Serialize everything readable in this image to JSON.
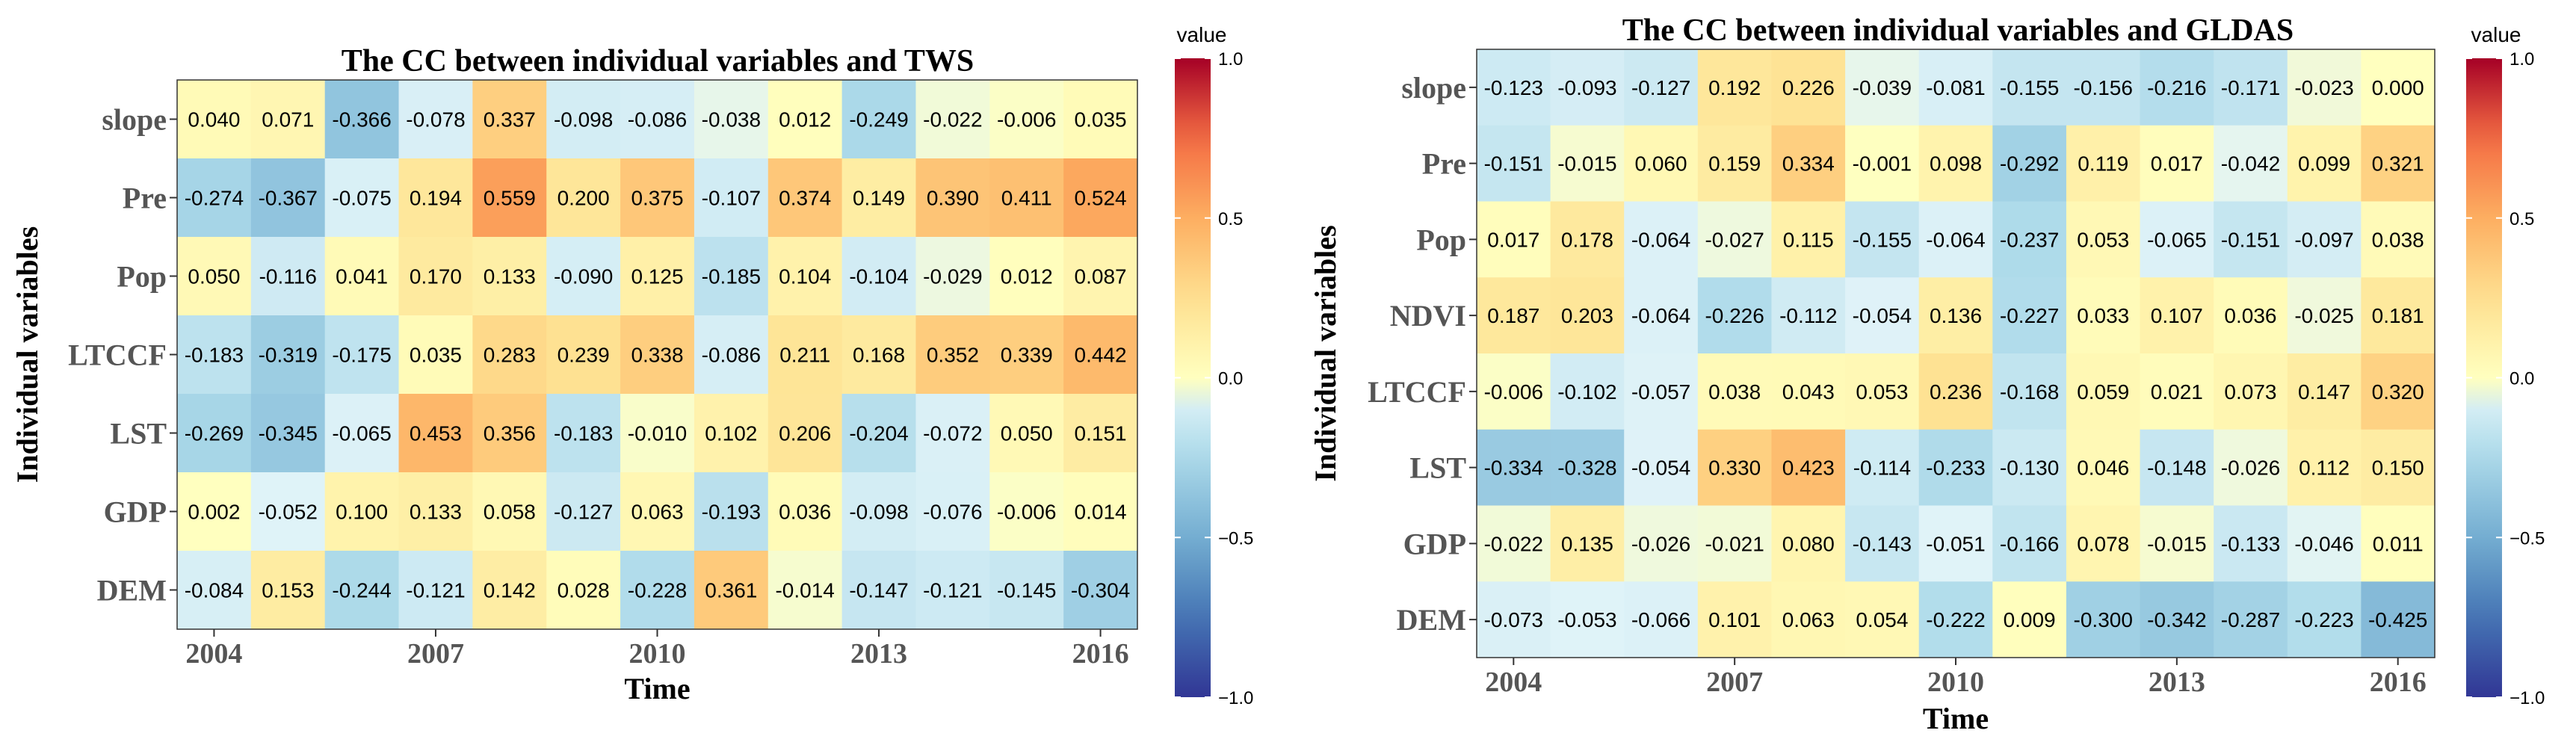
{
  "chart_data": [
    {
      "type": "heatmap",
      "title": "The CC between individual variables and TWS",
      "xlabel": "Time",
      "ylabel": "Individual variables",
      "x": [
        "2004",
        "2005",
        "2006",
        "2007",
        "2008",
        "2009",
        "2010",
        "2011",
        "2012",
        "2013",
        "2014",
        "2015",
        "2016"
      ],
      "x_tick_labels": [
        "2004",
        "2007",
        "2010",
        "2013",
        "2016"
      ],
      "rows": [
        "slope",
        "Pre",
        "Pop",
        "LTCCF",
        "LST",
        "GDP",
        "DEM"
      ],
      "values": [
        [
          0.04,
          0.071,
          -0.366,
          -0.078,
          0.337,
          -0.098,
          -0.086,
          -0.038,
          0.012,
          -0.249,
          -0.022,
          -0.006,
          0.035
        ],
        [
          -0.274,
          -0.367,
          -0.075,
          0.194,
          0.559,
          0.2,
          0.375,
          -0.107,
          0.374,
          0.149,
          0.39,
          0.411,
          0.524
        ],
        [
          0.05,
          -0.116,
          0.041,
          0.17,
          0.133,
          -0.09,
          0.125,
          -0.185,
          0.104,
          -0.104,
          -0.029,
          0.012,
          0.087
        ],
        [
          -0.183,
          -0.319,
          -0.175,
          0.035,
          0.283,
          0.239,
          0.338,
          -0.086,
          0.211,
          0.168,
          0.352,
          0.339,
          0.442
        ],
        [
          -0.269,
          -0.345,
          -0.065,
          0.453,
          0.356,
          -0.183,
          -0.01,
          0.102,
          0.206,
          -0.204,
          -0.072,
          0.05,
          0.151
        ],
        [
          0.002,
          -0.052,
          0.1,
          0.133,
          0.058,
          -0.127,
          0.063,
          -0.193,
          0.036,
          -0.098,
          -0.076,
          -0.006,
          0.014
        ],
        [
          -0.084,
          0.153,
          -0.244,
          -0.121,
          0.142,
          0.028,
          -0.228,
          0.361,
          -0.014,
          -0.147,
          -0.121,
          -0.145,
          -0.304
        ]
      ],
      "legend_title": "value",
      "legend_ticks": [
        "1.0",
        "0.5",
        "0.0",
        "−0.5",
        "−1.0"
      ],
      "scale_range": [
        -1,
        1
      ]
    },
    {
      "type": "heatmap",
      "title": "The CC between individual variables and GLDAS",
      "xlabel": "Time",
      "ylabel": "Individual variables",
      "x": [
        "2004",
        "2005",
        "2006",
        "2007",
        "2008",
        "2009",
        "2010",
        "2011",
        "2012",
        "2013",
        "2014",
        "2015",
        "2016"
      ],
      "x_tick_labels": [
        "2004",
        "2007",
        "2010",
        "2013",
        "2016"
      ],
      "rows": [
        "slope",
        "Pre",
        "Pop",
        "NDVI",
        "LTCCF",
        "LST",
        "GDP",
        "DEM"
      ],
      "values": [
        [
          -0.123,
          -0.093,
          -0.127,
          0.192,
          0.226,
          -0.039,
          -0.081,
          -0.155,
          -0.156,
          -0.216,
          -0.171,
          -0.023,
          0.0
        ],
        [
          -0.151,
          -0.015,
          0.06,
          0.159,
          0.334,
          -0.001,
          0.098,
          -0.292,
          0.119,
          0.017,
          -0.042,
          0.099,
          0.321
        ],
        [
          0.017,
          0.178,
          -0.064,
          -0.027,
          0.115,
          -0.155,
          -0.064,
          -0.237,
          0.053,
          -0.065,
          -0.151,
          -0.097,
          0.038
        ],
        [
          0.187,
          0.203,
          -0.064,
          -0.226,
          -0.112,
          -0.054,
          0.136,
          -0.227,
          0.033,
          0.107,
          0.036,
          -0.025,
          0.181
        ],
        [
          -0.006,
          -0.102,
          -0.057,
          0.038,
          0.043,
          0.053,
          0.236,
          -0.168,
          0.059,
          0.021,
          0.073,
          0.147,
          0.32
        ],
        [
          -0.334,
          -0.328,
          -0.054,
          0.33,
          0.423,
          -0.114,
          -0.233,
          -0.13,
          0.046,
          -0.148,
          -0.026,
          0.112,
          0.15
        ],
        [
          -0.022,
          0.135,
          -0.026,
          -0.021,
          0.08,
          -0.143,
          -0.051,
          -0.166,
          0.078,
          -0.015,
          -0.133,
          -0.046,
          0.011
        ],
        [
          -0.073,
          -0.053,
          -0.066,
          0.101,
          0.063,
          0.054,
          -0.222,
          0.009,
          -0.3,
          -0.342,
          -0.287,
          -0.223,
          -0.425
        ]
      ],
      "legend_title": "value",
      "legend_ticks": [
        "1.0",
        "0.5",
        "0.0",
        "−0.5",
        "−1.0"
      ],
      "scale_range": [
        -1,
        1
      ]
    }
  ]
}
